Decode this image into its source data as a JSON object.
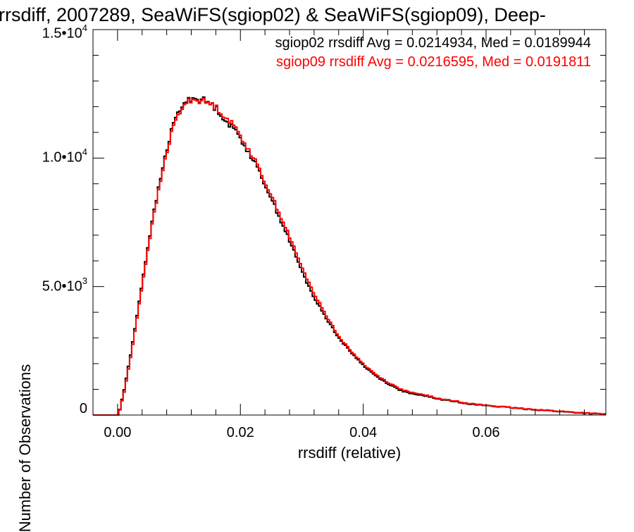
{
  "chart_data": {
    "type": "line",
    "title": "rrsdiff, 2007289, SeaWiFS(sgiop02) & SeaWiFS(sgiop09), Deep-",
    "xlabel": "rrsdiff (relative)",
    "ylabel": "Number of Observations",
    "xlim": [
      -0.004,
      0.0795
    ],
    "ylim": [
      0,
      15000
    ],
    "x_ticks": [
      {
        "value": 0.0,
        "label": "0.00"
      },
      {
        "value": 0.02,
        "label": "0.02"
      },
      {
        "value": 0.04,
        "label": "0.04"
      },
      {
        "value": 0.06,
        "label": "0.06"
      }
    ],
    "y_ticks": [
      {
        "value": 0,
        "mantissa": "0",
        "exponent": ""
      },
      {
        "value": 5000,
        "mantissa": "5.0•10",
        "exponent": "3"
      },
      {
        "value": 10000,
        "mantissa": "1.0•10",
        "exponent": "4"
      },
      {
        "value": 15000,
        "mantissa": "1.5•10",
        "exponent": "4"
      }
    ],
    "legend": {
      "placement": "top-right",
      "entries": [
        {
          "text": "sgiop02 rrsdiff Avg = 0.0214934, Med = 0.0189944",
          "color": "#000000"
        },
        {
          "text": "sgiop09 rrsdiff Avg = 0.0216595, Med = 0.0191811",
          "color": "#ff0000"
        }
      ]
    },
    "series": [
      {
        "color": "#000000",
        "x": [
          -0.004,
          -0.001,
          0.0,
          0.001,
          0.002,
          0.003,
          0.004,
          0.005,
          0.006,
          0.007,
          0.008,
          0.009,
          0.01,
          0.011,
          0.012,
          0.013,
          0.014,
          0.015,
          0.016,
          0.017,
          0.018,
          0.019,
          0.02,
          0.022,
          0.024,
          0.026,
          0.028,
          0.03,
          0.032,
          0.034,
          0.036,
          0.038,
          0.04,
          0.042,
          0.044,
          0.046,
          0.048,
          0.05,
          0.052,
          0.055,
          0.058,
          0.06,
          0.063,
          0.066,
          0.07,
          0.074,
          0.078,
          0.0795
        ],
        "y": [
          0,
          0,
          0,
          1100,
          2400,
          3900,
          5400,
          6900,
          8200,
          9400,
          10500,
          11400,
          11900,
          12200,
          12350,
          12300,
          12250,
          12100,
          11900,
          11600,
          11300,
          11100,
          10700,
          9900,
          8900,
          7800,
          6700,
          5500,
          4500,
          3700,
          2950,
          2400,
          1900,
          1500,
          1200,
          950,
          800,
          750,
          620,
          520,
          400,
          370,
          300,
          240,
          170,
          100,
          40,
          30
        ]
      },
      {
        "color": "#ff0000",
        "x": [
          -0.004,
          -0.001,
          0.0,
          0.001,
          0.002,
          0.003,
          0.004,
          0.005,
          0.006,
          0.007,
          0.008,
          0.009,
          0.01,
          0.011,
          0.012,
          0.013,
          0.014,
          0.015,
          0.016,
          0.017,
          0.018,
          0.019,
          0.02,
          0.022,
          0.024,
          0.026,
          0.028,
          0.03,
          0.032,
          0.034,
          0.036,
          0.038,
          0.04,
          0.042,
          0.044,
          0.046,
          0.048,
          0.05,
          0.052,
          0.055,
          0.058,
          0.06,
          0.063,
          0.066,
          0.07,
          0.074,
          0.078,
          0.0795
        ],
        "y": [
          0,
          0,
          0,
          1000,
          2300,
          3800,
          5300,
          6800,
          8100,
          9300,
          10400,
          11300,
          11800,
          12150,
          12300,
          12250,
          12200,
          12100,
          11950,
          11700,
          11450,
          11200,
          10800,
          10000,
          9000,
          7950,
          6850,
          5650,
          4650,
          3800,
          3000,
          2450,
          1950,
          1550,
          1250,
          1000,
          850,
          780,
          640,
          540,
          420,
          380,
          310,
          250,
          180,
          110,
          50,
          35
        ]
      }
    ]
  }
}
